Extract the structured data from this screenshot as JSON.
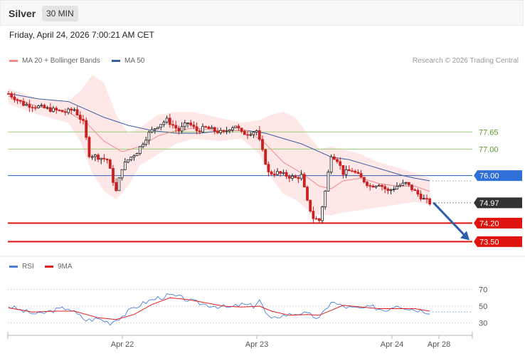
{
  "header": {
    "title": "Silver",
    "timeframe": "30 MIN"
  },
  "datetime": "Friday, April 24, 2026 7:00:21 AM CET",
  "legend_main": [
    {
      "label": "MA 20 + Bollinger Bands",
      "color": "#f08a8a"
    },
    {
      "label": "MA 50",
      "color": "#3a5fa0"
    }
  ],
  "credit": "Research © 2026 Trading Central",
  "legend_rsi": [
    {
      "label": "RSI",
      "color": "#4a7fd8"
    },
    {
      "label": "9MA",
      "color": "#e02020"
    }
  ],
  "colors": {
    "up": "#1f1f1f",
    "down": "#cc1f1f",
    "ma20": "#f08a8a",
    "ma50": "#3a5fa0",
    "band": "#fde3e3",
    "green": "#9bcf7a",
    "pivot": "#2f5fb7",
    "support": "#e0140e",
    "arrow": "#2f5faa"
  },
  "chart_data": {
    "type": "candlestick",
    "timeframe": "30 MIN",
    "ylim": [
      73.0,
      80.0
    ],
    "x_ticks": [
      "Apr 22",
      "Apr 23",
      "Apr 24",
      "Apr 28"
    ],
    "levels": [
      {
        "value": 77.65,
        "label": "77.65",
        "kind": "resistance-green"
      },
      {
        "value": 77.0,
        "label": "77.00",
        "kind": "resistance-green"
      },
      {
        "value": 76.0,
        "label": "76.00",
        "kind": "pivot"
      },
      {
        "value": 74.2,
        "label": "74.20",
        "kind": "support"
      },
      {
        "value": 73.5,
        "label": "73.50",
        "kind": "support"
      }
    ],
    "last_price": {
      "value": 74.97,
      "label": "74.97"
    },
    "forecast_arrow": {
      "from": 74.95,
      "to": 73.5,
      "direction": "down"
    },
    "price_keypoints": [
      [
        0,
        79.1
      ],
      [
        5,
        78.7
      ],
      [
        10,
        78.6
      ],
      [
        14,
        78.5
      ],
      [
        19,
        78.4
      ],
      [
        22,
        78.5
      ],
      [
        25,
        78.0
      ],
      [
        27,
        76.8
      ],
      [
        30,
        76.7
      ],
      [
        33,
        76.6
      ],
      [
        36,
        75.4
      ],
      [
        38,
        76.3
      ],
      [
        40,
        76.6
      ],
      [
        43,
        76.9
      ],
      [
        47,
        77.6
      ],
      [
        50,
        77.9
      ],
      [
        53,
        78.1
      ],
      [
        57,
        77.7
      ],
      [
        60,
        78.0
      ],
      [
        63,
        77.7
      ],
      [
        66,
        77.8
      ],
      [
        69,
        77.7
      ],
      [
        72,
        77.6
      ],
      [
        74,
        77.8
      ],
      [
        76,
        77.9
      ],
      [
        78,
        77.6
      ],
      [
        80,
        77.6
      ],
      [
        83,
        77.7
      ],
      [
        85,
        76.9
      ],
      [
        87,
        76.1
      ],
      [
        90,
        76.1
      ],
      [
        93,
        76.0
      ],
      [
        96,
        75.9
      ],
      [
        98,
        76.0
      ],
      [
        100,
        75.0
      ],
      [
        102,
        74.4
      ],
      [
        104,
        74.3
      ],
      [
        106,
        75.4
      ],
      [
        108,
        76.8
      ],
      [
        110,
        76.6
      ],
      [
        112,
        76.1
      ],
      [
        115,
        76.2
      ],
      [
        118,
        75.9
      ],
      [
        121,
        75.6
      ],
      [
        124,
        75.7
      ],
      [
        127,
        75.4
      ],
      [
        130,
        75.6
      ],
      [
        133,
        75.7
      ],
      [
        136,
        75.4
      ],
      [
        139,
        75.1
      ],
      [
        141,
        74.97
      ]
    ],
    "ma20_keypoints": [
      [
        0,
        79.0
      ],
      [
        10,
        78.6
      ],
      [
        20,
        78.4
      ],
      [
        26,
        78.0
      ],
      [
        32,
        77.3
      ],
      [
        38,
        76.9
      ],
      [
        44,
        77.1
      ],
      [
        50,
        77.5
      ],
      [
        56,
        77.7
      ],
      [
        62,
        77.8
      ],
      [
        70,
        77.7
      ],
      [
        80,
        77.7
      ],
      [
        86,
        77.2
      ],
      [
        92,
        76.5
      ],
      [
        98,
        76.1
      ],
      [
        104,
        75.6
      ],
      [
        108,
        75.5
      ],
      [
        112,
        75.8
      ],
      [
        118,
        75.9
      ],
      [
        124,
        75.7
      ],
      [
        130,
        75.6
      ],
      [
        136,
        75.6
      ],
      [
        141,
        75.4
      ]
    ],
    "ma50_keypoints": [
      [
        0,
        79.1
      ],
      [
        10,
        78.9
      ],
      [
        20,
        78.8
      ],
      [
        26,
        78.5
      ],
      [
        32,
        78.2
      ],
      [
        40,
        77.9
      ],
      [
        48,
        77.7
      ],
      [
        56,
        77.6
      ],
      [
        64,
        77.6
      ],
      [
        72,
        77.7
      ],
      [
        80,
        77.7
      ],
      [
        86,
        77.6
      ],
      [
        92,
        77.4
      ],
      [
        98,
        77.2
      ],
      [
        104,
        76.9
      ],
      [
        108,
        76.7
      ],
      [
        114,
        76.6
      ],
      [
        120,
        76.4
      ],
      [
        126,
        76.2
      ],
      [
        132,
        76.0
      ],
      [
        136,
        75.9
      ],
      [
        141,
        75.8
      ]
    ],
    "bollinger_upper_keypoints": [
      [
        0,
        79.3
      ],
      [
        10,
        78.9
      ],
      [
        20,
        78.8
      ],
      [
        24,
        79.2
      ],
      [
        28,
        79.8
      ],
      [
        32,
        79.5
      ],
      [
        36,
        78.3
      ],
      [
        40,
        77.6
      ],
      [
        44,
        77.8
      ],
      [
        50,
        78.3
      ],
      [
        56,
        78.4
      ],
      [
        62,
        78.4
      ],
      [
        70,
        78.2
      ],
      [
        78,
        78.0
      ],
      [
        84,
        78.1
      ],
      [
        88,
        78.3
      ],
      [
        92,
        78.4
      ],
      [
        96,
        78.2
      ],
      [
        100,
        77.6
      ],
      [
        104,
        77.0
      ],
      [
        108,
        77.1
      ],
      [
        112,
        77.0
      ],
      [
        118,
        76.8
      ],
      [
        124,
        76.5
      ],
      [
        130,
        76.3
      ],
      [
        136,
        76.1
      ],
      [
        141,
        75.9
      ]
    ],
    "bollinger_lower_keypoints": [
      [
        0,
        78.7
      ],
      [
        10,
        78.3
      ],
      [
        20,
        78.0
      ],
      [
        24,
        77.3
      ],
      [
        28,
        76.1
      ],
      [
        32,
        75.4
      ],
      [
        36,
        75.1
      ],
      [
        40,
        75.6
      ],
      [
        44,
        76.4
      ],
      [
        50,
        76.8
      ],
      [
        56,
        77.2
      ],
      [
        62,
        77.4
      ],
      [
        70,
        77.3
      ],
      [
        78,
        77.4
      ],
      [
        84,
        76.8
      ],
      [
        88,
        75.9
      ],
      [
        92,
        75.3
      ],
      [
        96,
        75.1
      ],
      [
        100,
        74.7
      ],
      [
        104,
        74.5
      ],
      [
        108,
        74.5
      ],
      [
        112,
        74.6
      ],
      [
        118,
        74.7
      ],
      [
        124,
        74.8
      ],
      [
        130,
        74.9
      ],
      [
        136,
        75.0
      ],
      [
        141,
        74.9
      ]
    ],
    "rsi": {
      "ylim": [
        20,
        80
      ],
      "levels": [
        70,
        50,
        30
      ],
      "rsi_keypoints": [
        [
          0,
          50
        ],
        [
          5,
          44
        ],
        [
          10,
          40
        ],
        [
          15,
          45
        ],
        [
          20,
          48
        ],
        [
          23,
          40
        ],
        [
          26,
          33
        ],
        [
          30,
          35
        ],
        [
          34,
          30
        ],
        [
          38,
          38
        ],
        [
          42,
          48
        ],
        [
          46,
          55
        ],
        [
          50,
          60
        ],
        [
          54,
          63
        ],
        [
          58,
          60
        ],
        [
          62,
          55
        ],
        [
          66,
          52
        ],
        [
          70,
          50
        ],
        [
          74,
          48
        ],
        [
          78,
          52
        ],
        [
          82,
          50
        ],
        [
          84,
          58
        ],
        [
          86,
          42
        ],
        [
          88,
          33
        ],
        [
          90,
          38
        ],
        [
          94,
          40
        ],
        [
          98,
          42
        ],
        [
          102,
          38
        ],
        [
          104,
          35
        ],
        [
          106,
          45
        ],
        [
          108,
          56
        ],
        [
          110,
          52
        ],
        [
          114,
          48
        ],
        [
          118,
          47
        ],
        [
          122,
          49
        ],
        [
          126,
          45
        ],
        [
          130,
          52
        ],
        [
          134,
          47
        ],
        [
          138,
          45
        ],
        [
          141,
          43
        ]
      ],
      "ma9_keypoints": [
        [
          0,
          48
        ],
        [
          8,
          43
        ],
        [
          16,
          44
        ],
        [
          22,
          44
        ],
        [
          30,
          36
        ],
        [
          36,
          34
        ],
        [
          42,
          40
        ],
        [
          48,
          52
        ],
        [
          54,
          60
        ],
        [
          60,
          58
        ],
        [
          66,
          54
        ],
        [
          72,
          50
        ],
        [
          78,
          49
        ],
        [
          84,
          50
        ],
        [
          88,
          44
        ],
        [
          94,
          39
        ],
        [
          100,
          40
        ],
        [
          104,
          39
        ],
        [
          108,
          45
        ],
        [
          112,
          51
        ],
        [
          118,
          49
        ],
        [
          124,
          47
        ],
        [
          130,
          47
        ],
        [
          136,
          47
        ],
        [
          141,
          44
        ]
      ]
    }
  }
}
